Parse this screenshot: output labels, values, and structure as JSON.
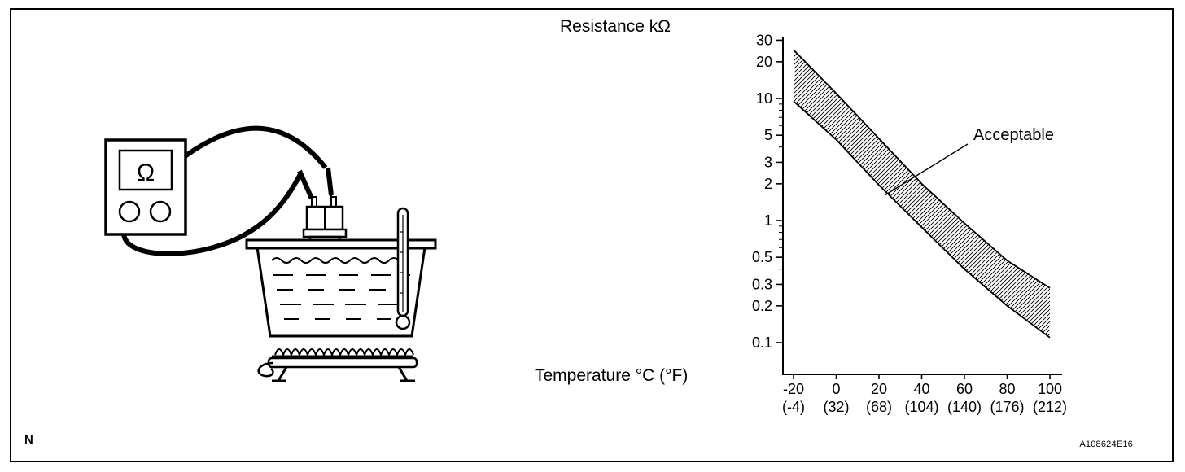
{
  "figure": {
    "bottom_left_label": "N",
    "figure_code": "A108624E16"
  },
  "illustration": {
    "meter_symbol": "Ω"
  },
  "chart_data": {
    "type": "area",
    "title": "Resistance kΩ",
    "xlabel": "Temperature °C (°F)",
    "ylabel": "Resistance kΩ",
    "y_scale": "log",
    "ylim": [
      0.1,
      30
    ],
    "xlim": [
      -20,
      100
    ],
    "grid": false,
    "y_ticks": [
      30,
      20,
      10,
      5,
      3,
      2,
      1,
      0.5,
      0.3,
      0.2,
      0.1
    ],
    "x_ticks_c": [
      -20,
      0,
      20,
      40,
      60,
      80,
      100
    ],
    "x_ticks_f": [
      "(-4)",
      "(32)",
      "(68)",
      "(104)",
      "(140)",
      "(176)",
      "(212)"
    ],
    "annotation": "Acceptable",
    "band_style": "hatched",
    "series": [
      {
        "name": "upper_limit_kohm",
        "x": [
          -20,
          0,
          20,
          40,
          60,
          80,
          100
        ],
        "values": [
          25,
          11,
          4.7,
          2.0,
          0.95,
          0.47,
          0.28
        ]
      },
      {
        "name": "lower_limit_kohm",
        "x": [
          -20,
          0,
          20,
          40,
          60,
          80,
          100
        ],
        "values": [
          9.5,
          4.6,
          1.95,
          0.88,
          0.4,
          0.2,
          0.11
        ]
      }
    ]
  }
}
